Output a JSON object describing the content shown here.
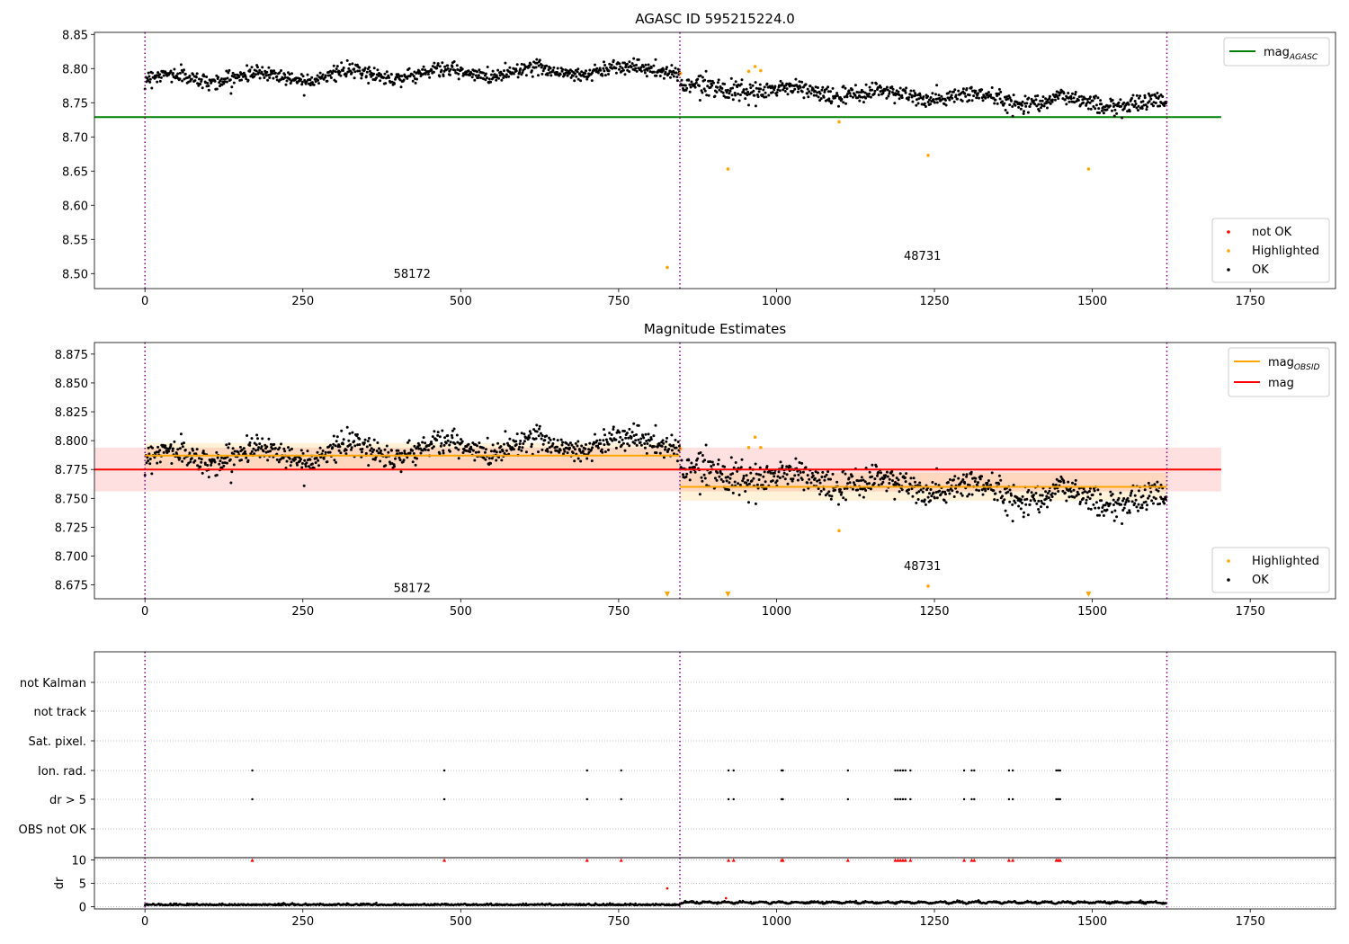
{
  "chart_data": [
    {
      "type": "scatter",
      "title": "AGASC ID 595215224.0",
      "xlim": [
        -80,
        1885
      ],
      "ylim": [
        8.478,
        8.853
      ],
      "xticks": [
        0,
        250,
        500,
        750,
        1000,
        1250,
        1500,
        1750
      ],
      "yticks": [
        8.5,
        8.55,
        8.6,
        8.65,
        8.7,
        8.75,
        8.8,
        8.85
      ],
      "ytick_labels": [
        "8.50",
        "8.55",
        "8.60",
        "8.65",
        "8.70",
        "8.75",
        "8.80",
        "8.85"
      ],
      "vlines": [
        0,
        847,
        1618
      ],
      "hlines": [
        {
          "name": "mag_AGASC",
          "y": 8.729,
          "x": [
            -80,
            1704
          ],
          "color": "#008000"
        }
      ],
      "segments": [
        {
          "x0": 0,
          "x1": 847,
          "start": 8.785,
          "end": 8.8,
          "wave_amp": 0.006,
          "noise": 0.006
        },
        {
          "x0": 847,
          "x1": 1618,
          "start": 8.773,
          "end": 8.747,
          "wave_amp": 0.006,
          "noise": 0.007
        }
      ],
      "highlighted": [
        [
          827,
          8.509
        ],
        [
          923,
          8.653
        ],
        [
          1099,
          8.722
        ],
        [
          1240,
          8.673
        ],
        [
          1494,
          8.653
        ],
        [
          956,
          8.796
        ],
        [
          966,
          8.803
        ],
        [
          975,
          8.797
        ],
        [
          848,
          8.793
        ]
      ],
      "not_ok": [],
      "annotations": [
        {
          "text": "58172",
          "x": 423,
          "y": 8.494
        },
        {
          "text": "48731",
          "x": 1231,
          "y": 8.52
        }
      ],
      "legend_lines": {
        "position": "upper right",
        "items": [
          {
            "label": "mag",
            "sub": "AGASC",
            "color": "#008000"
          }
        ]
      },
      "legend_points": {
        "position": "lower right",
        "items": [
          {
            "label": "not OK",
            "color": "#ff0000"
          },
          {
            "label": "Highlighted",
            "color": "#ffa500"
          },
          {
            "label": "OK",
            "color": "#000000"
          }
        ]
      }
    },
    {
      "type": "scatter",
      "title": "Magnitude Estimates",
      "xlim": [
        -80,
        1885
      ],
      "ylim": [
        8.663,
        8.885
      ],
      "xticks": [
        0,
        250,
        500,
        750,
        1000,
        1250,
        1500,
        1750
      ],
      "yticks": [
        8.675,
        8.7,
        8.725,
        8.75,
        8.775,
        8.8,
        8.825,
        8.85,
        8.875
      ],
      "ytick_labels": [
        "8.675",
        "8.700",
        "8.725",
        "8.750",
        "8.775",
        "8.800",
        "8.825",
        "8.850",
        "8.875"
      ],
      "vlines": [
        0,
        847,
        1618
      ],
      "bands": [
        {
          "x": [
            -80,
            1704
          ],
          "y": [
            8.756,
            8.794
          ],
          "color": "#ff0000",
          "opacity": 0.12
        },
        {
          "x": [
            0,
            847
          ],
          "y": [
            8.776,
            8.798
          ],
          "color": "#ffa500",
          "opacity": 0.15
        },
        {
          "x": [
            847,
            1618
          ],
          "y": [
            8.748,
            8.772
          ],
          "color": "#ffa500",
          "opacity": 0.15
        }
      ],
      "hlines": [
        {
          "name": "mag",
          "y": 8.775,
          "x": [
            -80,
            1704
          ],
          "color": "#ff0000"
        },
        {
          "name": "mag_OBSID_1",
          "y": 8.787,
          "x": [
            0,
            847
          ],
          "color": "#ffa500"
        },
        {
          "name": "mag_OBSID_2",
          "y": 8.76,
          "x": [
            847,
            1618
          ],
          "color": "#ffa500"
        }
      ],
      "segments": [
        {
          "x0": 0,
          "x1": 847,
          "start": 8.785,
          "end": 8.8,
          "wave_amp": 0.006,
          "noise": 0.006
        },
        {
          "x0": 847,
          "x1": 1618,
          "start": 8.773,
          "end": 8.747,
          "wave_amp": 0.006,
          "noise": 0.007
        }
      ],
      "highlighted": [
        [
          1099,
          8.722
        ],
        [
          1240,
          8.674
        ],
        [
          956,
          8.794
        ],
        [
          966,
          8.803
        ],
        [
          975,
          8.794
        ],
        [
          848,
          8.793
        ]
      ],
      "offscale_markers": [
        827,
        923,
        1494
      ],
      "annotations": [
        {
          "text": "58172",
          "x": 423,
          "y": 8.669
        },
        {
          "text": "48731",
          "x": 1231,
          "y": 8.688
        }
      ],
      "legend_lines": {
        "position": "upper right",
        "items": [
          {
            "label": "mag",
            "sub": "OBSID",
            "color": "#ffa500"
          },
          {
            "label": "mag",
            "sub": "",
            "color": "#ff0000"
          }
        ]
      },
      "legend_points": {
        "position": "lower right",
        "items": [
          {
            "label": "Highlighted",
            "color": "#ffa500"
          },
          {
            "label": "OK",
            "color": "#000000"
          }
        ]
      }
    },
    {
      "type": "scatter",
      "title": "",
      "categories": [
        "not Kalman",
        "not track",
        "Sat. pixel.",
        "Ion. rad.",
        "dr > 5",
        "OBS not OK"
      ],
      "xlim": [
        -80,
        1885
      ],
      "vlines": [
        0,
        847,
        1618
      ],
      "flag_x": [
        170,
        474,
        700,
        754,
        924,
        932,
        1008,
        1010,
        1113,
        1188,
        1192,
        1196,
        1200,
        1204,
        1212,
        1297,
        1309,
        1313,
        1368,
        1374,
        1443,
        1446,
        1449
      ]
    },
    {
      "type": "scatter",
      "ylabel": "dr",
      "xlim": [
        -80,
        1885
      ],
      "ylim": [
        -0.5,
        10.5
      ],
      "yticks": [
        0,
        5,
        10
      ],
      "ytick_labels": [
        "0",
        "5",
        "10"
      ],
      "xticks": [
        0,
        250,
        500,
        750,
        1000,
        1250,
        1500,
        1750
      ],
      "vlines": [
        0,
        847,
        1618
      ],
      "capped_value": 10,
      "capped_x": [
        170,
        474,
        700,
        754,
        924,
        932,
        1008,
        1010,
        1113,
        1188,
        1192,
        1196,
        1200,
        1204,
        1212,
        1297,
        1309,
        1313,
        1368,
        1374,
        1443,
        1446,
        1449
      ],
      "outliers": [
        [
          827,
          3.9
        ],
        [
          920,
          1.8
        ]
      ],
      "baseline": {
        "x": [
          0,
          1618
        ],
        "mean": 0.3,
        "noise": 0.2
      }
    }
  ]
}
